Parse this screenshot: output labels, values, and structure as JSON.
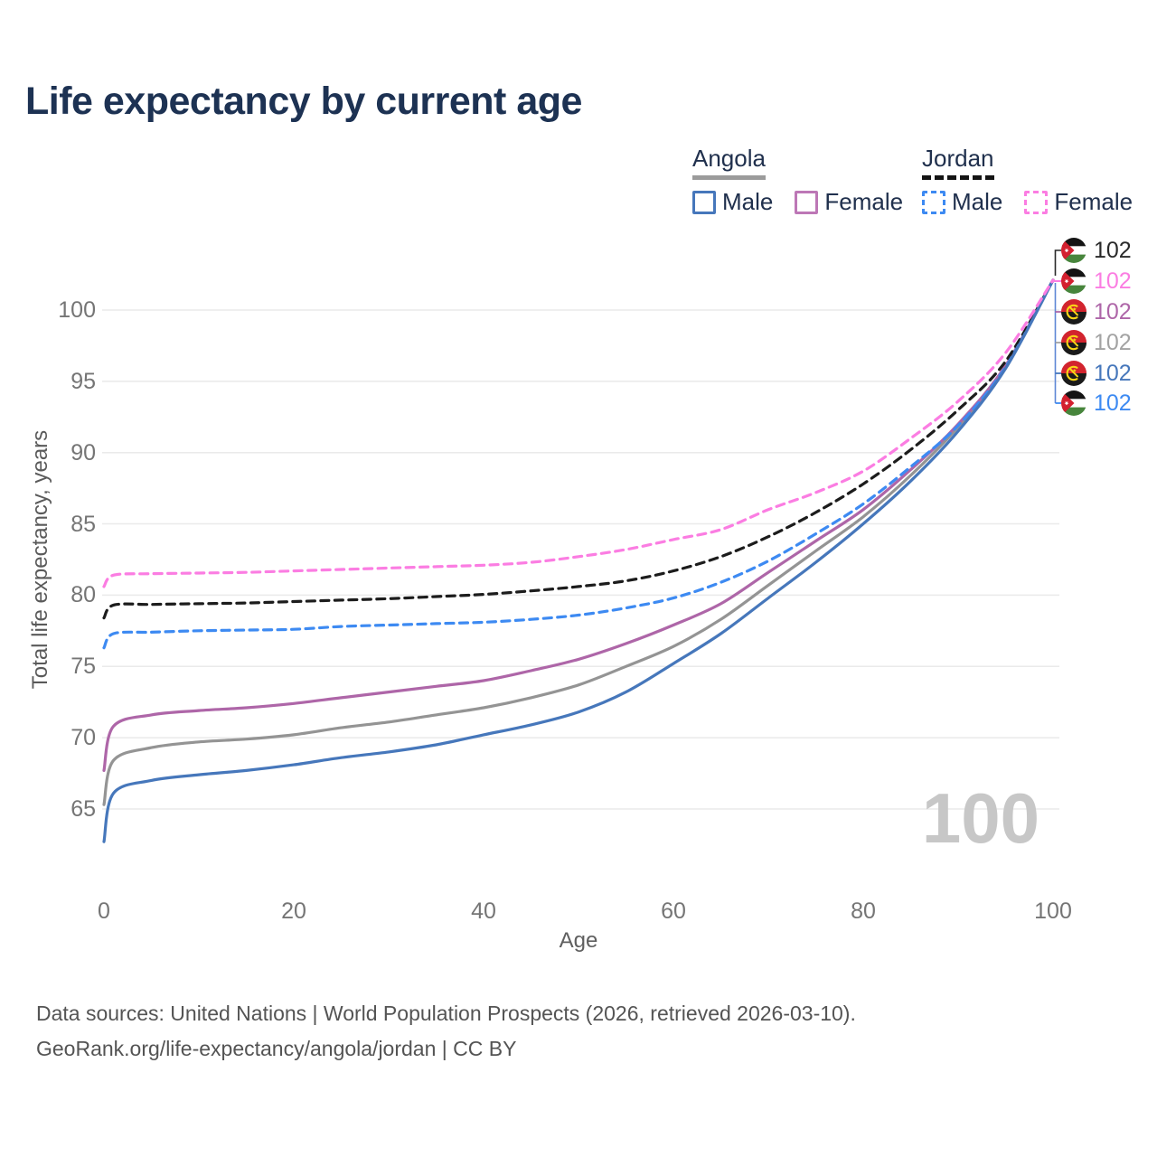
{
  "title": "Life expectancy by current age",
  "y_axis_title": "Total life expectancy, years",
  "x_axis_title": "Age",
  "watermark_age": "100",
  "legend": {
    "groups": [
      {
        "id": "angola",
        "name": "Angola",
        "line_style": "solid",
        "underline_color": "#9b9b9b",
        "items": [
          {
            "id": "male",
            "label": "Male",
            "color": "#4677bb"
          },
          {
            "id": "female",
            "label": "Female",
            "color": "#bd77b6"
          }
        ]
      },
      {
        "id": "jordan",
        "name": "Jordan",
        "line_style": "dashed",
        "underline_color": "#141414",
        "items": [
          {
            "id": "male",
            "label": "Male",
            "color": "#3d8af2"
          },
          {
            "id": "female",
            "label": "Female",
            "color": "#fb7de2"
          }
        ]
      }
    ]
  },
  "chart_data": {
    "type": "line",
    "title": "Life expectancy by current age",
    "xlabel": "Age",
    "ylabel": "Total life expectancy, years",
    "xlim": [
      0,
      100
    ],
    "ylim": [
      62,
      103
    ],
    "x_ticks": [
      0,
      20,
      40,
      60,
      80,
      100
    ],
    "y_ticks": [
      65,
      70,
      75,
      80,
      85,
      90,
      95,
      100
    ],
    "grid": "horizontal-only",
    "legend_position": "top-right",
    "x": [
      0,
      1,
      5,
      10,
      15,
      20,
      25,
      30,
      35,
      40,
      45,
      50,
      55,
      60,
      65,
      70,
      75,
      80,
      85,
      90,
      95,
      100
    ],
    "series": [
      {
        "name": "Angola Total",
        "country": "angola",
        "sex": "total",
        "color": "#949494",
        "dashed": false,
        "values": [
          65.3,
          68.4,
          69.3,
          69.7,
          69.9,
          70.2,
          70.7,
          71.1,
          71.6,
          72.1,
          72.8,
          73.7,
          75.0,
          76.4,
          78.3,
          80.7,
          83.1,
          85.5,
          88.4,
          91.8,
          96.0,
          102.1
        ]
      },
      {
        "name": "Angola Female",
        "country": "angola",
        "sex": "female",
        "color": "#ae66a8",
        "dashed": false,
        "values": [
          67.7,
          70.8,
          71.6,
          71.9,
          72.1,
          72.4,
          72.8,
          73.2,
          73.6,
          74.0,
          74.7,
          75.5,
          76.6,
          77.9,
          79.4,
          81.6,
          83.8,
          86.0,
          88.8,
          92.0,
          96.1,
          102.1
        ]
      },
      {
        "name": "Jordan Total",
        "country": "jordan",
        "sex": "total",
        "color": "#1c1c1c",
        "dashed": true,
        "values": [
          78.4,
          79.3,
          79.35,
          79.4,
          79.45,
          79.55,
          79.65,
          79.75,
          79.9,
          80.05,
          80.3,
          80.6,
          81.0,
          81.7,
          82.7,
          84.1,
          85.8,
          87.8,
          90.2,
          93.0,
          96.4,
          102.1
        ]
      },
      {
        "name": "Jordan Male",
        "country": "jordan",
        "sex": "male",
        "color": "#3d8af2",
        "dashed": true,
        "values": [
          76.3,
          77.3,
          77.4,
          77.5,
          77.55,
          77.6,
          77.8,
          77.9,
          78.0,
          78.1,
          78.3,
          78.6,
          79.1,
          79.8,
          80.9,
          82.4,
          84.3,
          86.4,
          89.0,
          91.9,
          96.0,
          102.1
        ]
      },
      {
        "name": "Angola Male",
        "country": "angola",
        "sex": "male",
        "color": "#4677bb",
        "dashed": false,
        "values": [
          62.7,
          66.1,
          67.0,
          67.4,
          67.7,
          68.1,
          68.6,
          69.0,
          69.5,
          70.2,
          70.9,
          71.8,
          73.2,
          75.2,
          77.3,
          79.8,
          82.3,
          85.0,
          88.0,
          91.5,
          95.9,
          102.1
        ]
      },
      {
        "name": "Jordan Female",
        "country": "jordan",
        "sex": "female",
        "color": "#fb7de2",
        "dashed": true,
        "values": [
          80.6,
          81.4,
          81.5,
          81.55,
          81.6,
          81.7,
          81.8,
          81.9,
          82.0,
          82.1,
          82.3,
          82.7,
          83.2,
          83.9,
          84.6,
          86.0,
          87.2,
          88.7,
          91.0,
          93.6,
          97.0,
          102.1
        ]
      }
    ],
    "end_labels": [
      {
        "series": "Jordan Total",
        "country": "jordan",
        "value": "102",
        "color": "#2a2a2a"
      },
      {
        "series": "Jordan Female",
        "country": "jordan",
        "value": "102",
        "color": "#fb7de2"
      },
      {
        "series": "Angola Female",
        "country": "angola",
        "value": "102",
        "color": "#ae66a8"
      },
      {
        "series": "Angola Total",
        "country": "angola",
        "value": "102",
        "color": "#a3a3a3"
      },
      {
        "series": "Angola Male",
        "country": "angola",
        "value": "102",
        "color": "#4677bb"
      },
      {
        "series": "Jordan Male",
        "country": "jordan",
        "value": "102",
        "color": "#3d8af2"
      }
    ]
  },
  "footer": {
    "line1": "Data sources: United Nations | World Population Prospects (2026, retrieved 2026-03-10).",
    "line2": "GeoRank.org/life-expectancy/angola/jordan | CC BY"
  }
}
